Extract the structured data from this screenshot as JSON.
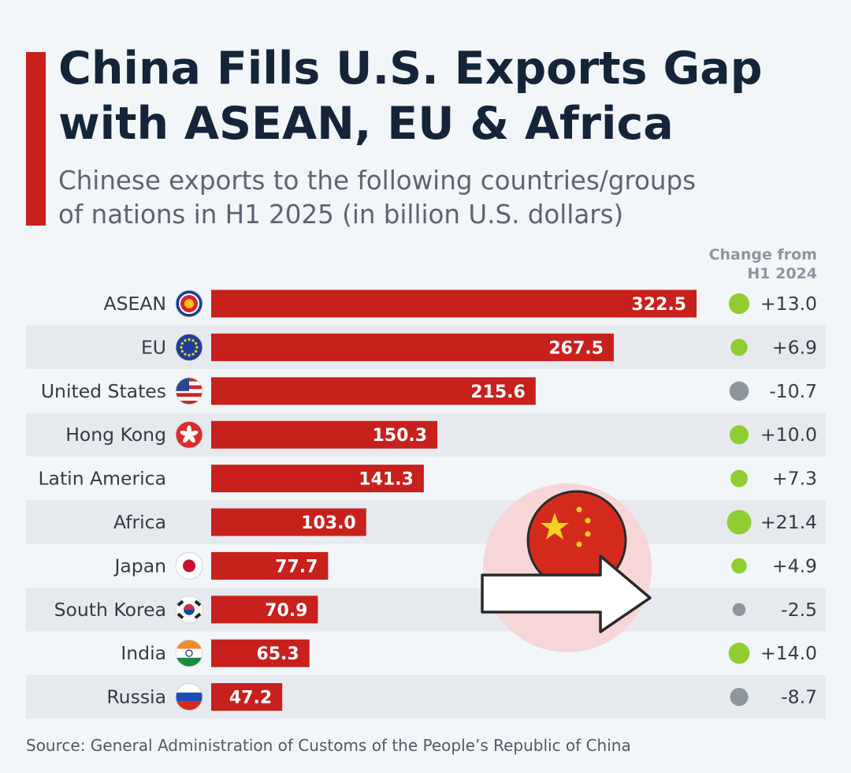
{
  "header": {
    "title_line1": "China Fills U.S. Exports Gap",
    "title_line2": "with ASEAN, EU & Africa",
    "subtitle_line1": "Chinese exports to the following countries/groups",
    "subtitle_line2": "of nations in H1 2025 (in billion U.S. dollars)",
    "change_header_line1": "Change from",
    "change_header_line2": "H1 2024"
  },
  "footer": {
    "source": "Source: General Administration of Customs of the People’s Republic of China"
  },
  "colors": {
    "bar": "#c8201c",
    "title": "#14253a",
    "positive_dot": "#8fcd32",
    "negative_dot": "#8d959d",
    "stripe": "#e6eaee"
  },
  "icons": [
    "asean-flag-icon",
    "eu-flag-icon",
    "us-flag-icon",
    "hong-kong-flag-icon",
    "japan-flag-icon",
    "south-korea-flag-icon",
    "india-flag-icon",
    "russia-flag-icon",
    "china-flag-icon",
    "arrow-right-icon"
  ],
  "chart_data": {
    "type": "bar",
    "orientation": "horizontal",
    "categories": [
      "ASEAN",
      "EU",
      "United States",
      "Hong Kong",
      "Latin America",
      "Africa",
      "Japan",
      "South Korea",
      "India",
      "Russia"
    ],
    "values": [
      322.5,
      267.5,
      215.6,
      150.3,
      141.3,
      103.0,
      77.7,
      70.9,
      65.3,
      47.2
    ],
    "value_labels": [
      "322.5",
      "267.5",
      "215.6",
      "150.3",
      "141.3",
      "103.0",
      "77.7",
      "70.9",
      "65.3",
      "47.2"
    ],
    "change": [
      13.0,
      6.9,
      -10.7,
      10.0,
      7.3,
      21.4,
      4.9,
      -2.5,
      14.0,
      -8.7
    ],
    "change_labels": [
      "+13.0",
      "+6.9",
      "-10.7",
      "+10.0",
      "+7.3",
      "+21.4",
      "+4.9",
      "-2.5",
      "+14.0",
      "-8.7"
    ],
    "xlim": [
      0,
      322.5
    ],
    "grid": false,
    "legend": "none"
  }
}
